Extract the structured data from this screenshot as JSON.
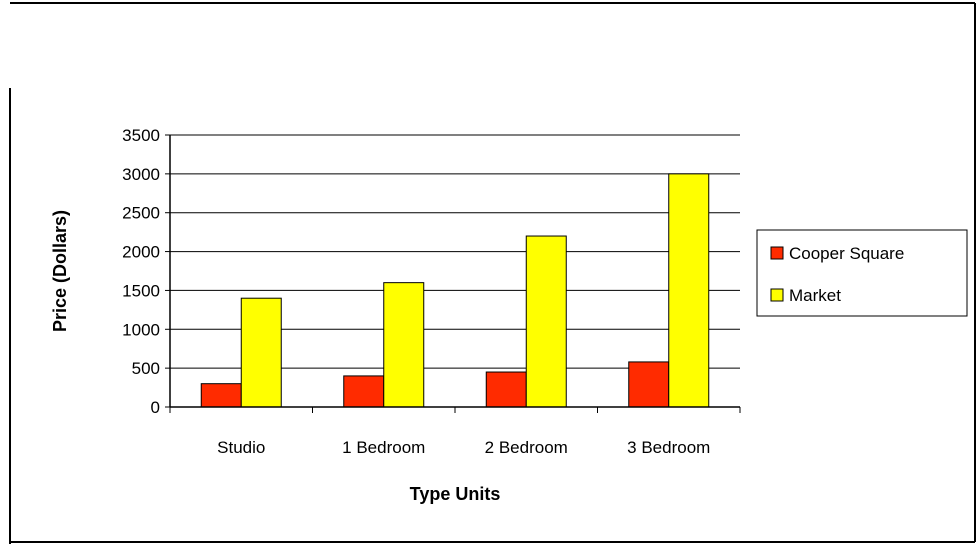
{
  "chart_data": {
    "type": "bar",
    "title": "",
    "xlabel": "Type Units",
    "ylabel": "Price (Dollars)",
    "categories": [
      "Studio",
      "1 Bedroom",
      "2 Bedroom",
      "3 Bedroom"
    ],
    "series": [
      {
        "name": "Cooper Square",
        "color": "#ff2b00",
        "values": [
          300,
          400,
          450,
          580
        ]
      },
      {
        "name": "Market",
        "color": "#ffff00",
        "values": [
          1400,
          1600,
          2200,
          3000
        ]
      }
    ],
    "ylim": [
      0,
      3500
    ],
    "yticks": [
      "0",
      "500",
      "1000",
      "1500",
      "2000",
      "2500",
      "3000",
      "3500"
    ],
    "grid": true,
    "legend": "right"
  }
}
